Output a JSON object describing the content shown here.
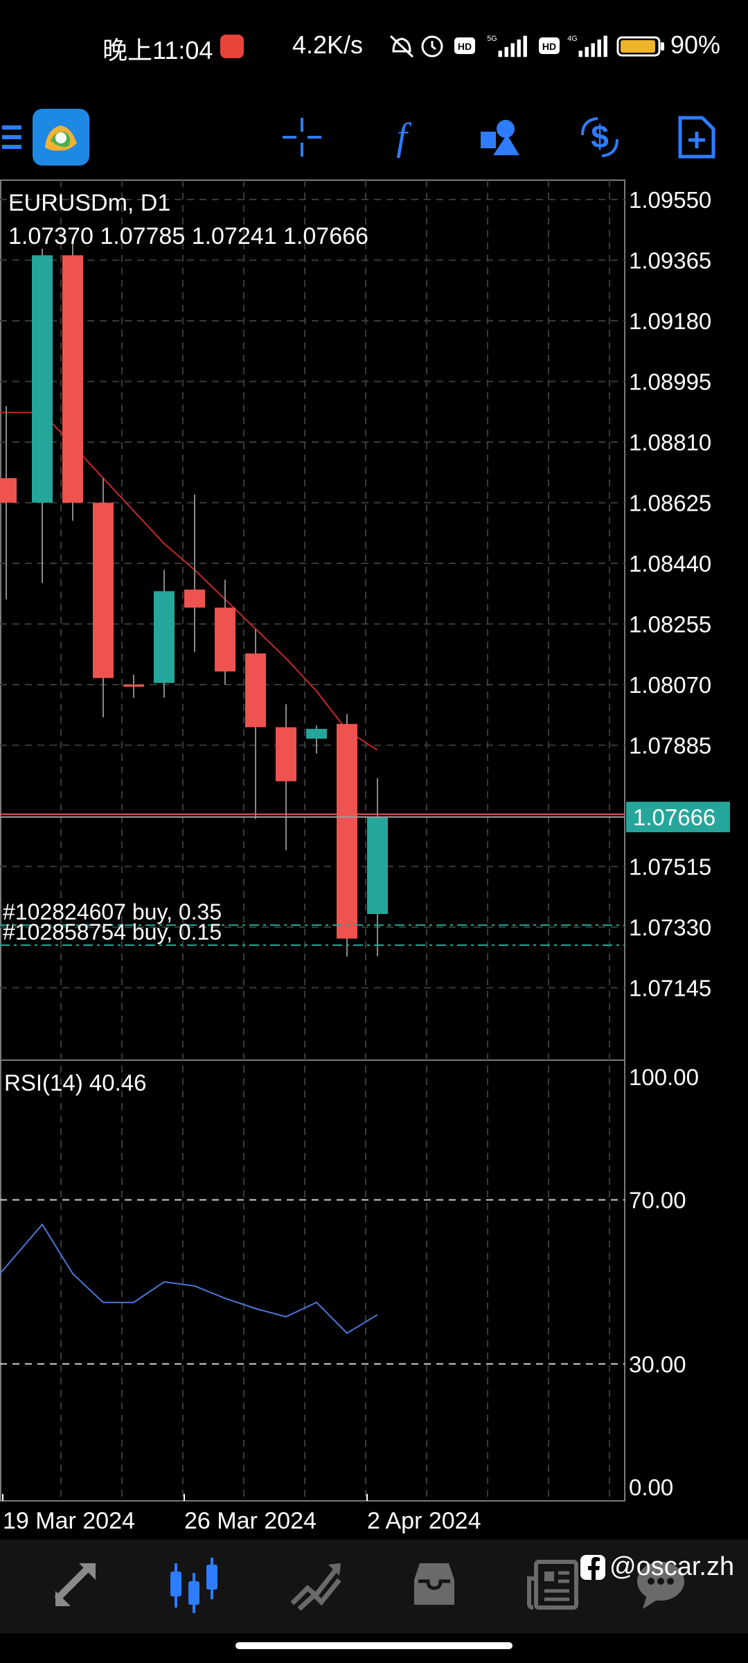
{
  "status_bar": {
    "time": "晚上11:04",
    "speed": "4.2K/s",
    "battery_pct": "90%",
    "net1": "5G",
    "net2": "4G"
  },
  "toolbar": {
    "icons": [
      "menu-icon",
      "metatrader-logo",
      "crosshair-icon",
      "function-icon",
      "objects-icon",
      "trade-icon",
      "new-order-icon"
    ],
    "accent_color": "#2e7dff"
  },
  "chart": {
    "symbol_timeframe": "EURUSDm, D1",
    "ohlc": "1.07370 1.07785 1.07241 1.07666",
    "current_price": "1.07666",
    "price_scale": [
      "1.09550",
      "1.09365",
      "1.09180",
      "1.08995",
      "1.08810",
      "1.08625",
      "1.08440",
      "1.08255",
      "1.08070",
      "1.07885",
      "1.07515",
      "1.07330",
      "1.07145"
    ],
    "orders": [
      {
        "label": "#102824607 buy, 0.35",
        "price": 1.07336
      },
      {
        "label": "#102858754 buy, 0.15",
        "price": 1.07275
      }
    ],
    "rsi_label": "RSI(14) 40.46",
    "rsi_scale": [
      "100.00",
      "70.00",
      "30.00",
      "0.00"
    ],
    "date_labels": [
      "19 Mar 2024",
      "26 Mar 2024",
      "2 Apr 2024"
    ],
    "colors": {
      "bull": "#26a69a",
      "bear": "#ef5350",
      "ma": "#c62828",
      "rsi": "#4a78d8",
      "price_tag": "#26a69a"
    }
  },
  "chart_data": {
    "type": "candlestick",
    "title": "EURUSDm, D1",
    "ylim": [
      1.07,
      1.0966
    ],
    "candles": [
      {
        "o": 1.087,
        "h": 1.0892,
        "l": 1.0833,
        "c": 1.08625
      },
      {
        "o": 1.08625,
        "h": 1.094,
        "l": 1.0838,
        "c": 1.0938
      },
      {
        "o": 1.0938,
        "h": 1.0943,
        "l": 1.0857,
        "c": 1.08625
      },
      {
        "o": 1.08625,
        "h": 1.087,
        "l": 1.0797,
        "c": 1.0809
      },
      {
        "o": 1.0807,
        "h": 1.081,
        "l": 1.0803,
        "c": 1.08065
      },
      {
        "o": 1.08075,
        "h": 1.0842,
        "l": 1.0803,
        "c": 1.08355
      },
      {
        "o": 1.0836,
        "h": 1.0865,
        "l": 1.0817,
        "c": 1.08305
      },
      {
        "o": 1.08305,
        "h": 1.0839,
        "l": 1.0807,
        "c": 1.0811
      },
      {
        "o": 1.08165,
        "h": 1.0824,
        "l": 1.0766,
        "c": 1.0794
      },
      {
        "o": 1.0794,
        "h": 1.0801,
        "l": 1.07565,
        "c": 1.07775
      },
      {
        "o": 1.07905,
        "h": 1.07945,
        "l": 1.0786,
        "c": 1.07935
      },
      {
        "o": 1.0795,
        "h": 1.0798,
        "l": 1.0724,
        "c": 1.07295
      },
      {
        "o": 1.0737,
        "h": 1.07785,
        "l": 1.07241,
        "c": 1.07666
      }
    ],
    "ma": [
      1.089,
      1.089,
      1.088,
      1.087,
      1.086,
      1.085,
      1.0842,
      1.0833,
      1.0824,
      1.0815,
      1.0805,
      1.0793,
      1.0787
    ],
    "rsi": [
      52,
      64,
      52,
      45,
      45,
      50,
      49,
      46,
      43.5,
      41.5,
      45,
      37.5,
      42
    ]
  },
  "bottom_nav": {
    "items": [
      "quotes-icon",
      "chart-icon",
      "trade-icon",
      "history-icon",
      "news-icon",
      "chat-icon"
    ],
    "watermark": "@oscar.zh"
  }
}
